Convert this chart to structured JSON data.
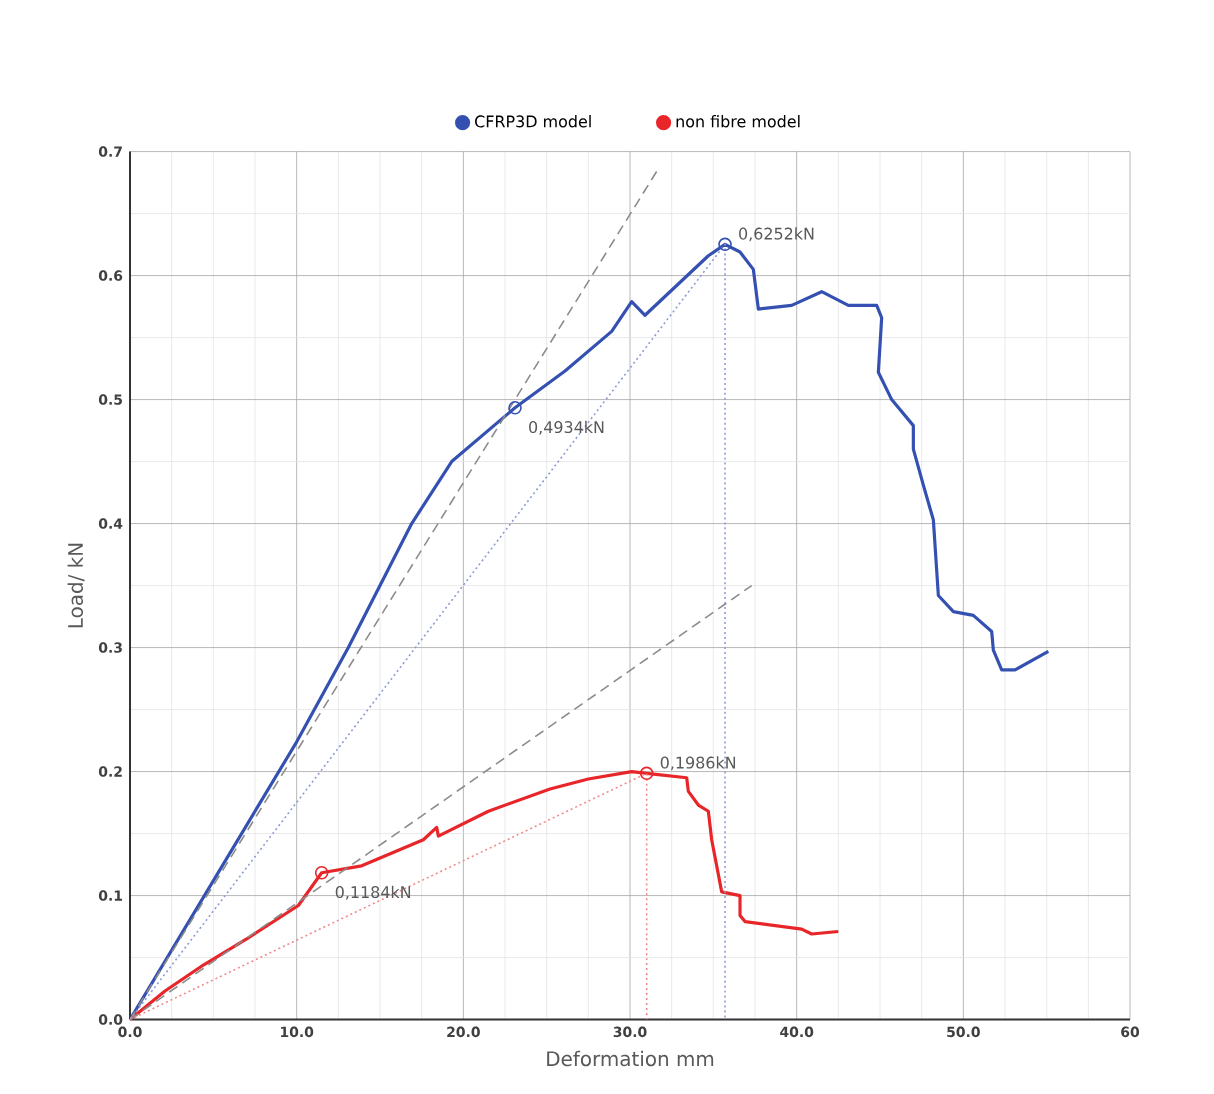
{
  "chart_data": {
    "type": "line",
    "xlabel": "Deformation mm",
    "ylabel": "Load/ kN",
    "xlim": [
      0,
      60
    ],
    "ylim": [
      0,
      0.7
    ],
    "xticks": [
      {
        "value": 0,
        "label": "0.0"
      },
      {
        "value": 10,
        "label": "10.0"
      },
      {
        "value": 20,
        "label": "20.0"
      },
      {
        "value": 30,
        "label": "30.0"
      },
      {
        "value": 40,
        "label": "40.0"
      },
      {
        "value": 50,
        "label": "50.0"
      },
      {
        "value": 60,
        "label": "60"
      }
    ],
    "yticks": [
      {
        "value": 0,
        "label": "0.0"
      },
      0.1,
      0.2,
      0.3,
      0.4,
      0.5,
      0.6,
      0.7
    ],
    "grid": true,
    "legend": "top",
    "series": [
      {
        "name": "CFRP3D model",
        "color": "#3451b2",
        "x": [
          0,
          10.0,
          13.1,
          16.9,
          19.3,
          23.1,
          26.1,
          28.9,
          30.1,
          30.9,
          32.8,
          34.7,
          35.7,
          36.6,
          37.4,
          37.7,
          39.7,
          41.5,
          43.1,
          44.8,
          45.1,
          44.9,
          45.7,
          47.0,
          47.0,
          47.6,
          48.2,
          48.5,
          49.4,
          50.6,
          51.7,
          51.8,
          52.3,
          53.1,
          55.1
        ],
        "values": [
          0,
          0.224,
          0.3,
          0.4,
          0.45,
          0.4934,
          0.523,
          0.555,
          0.579,
          0.568,
          0.592,
          0.616,
          0.6252,
          0.619,
          0.605,
          0.573,
          0.576,
          0.587,
          0.576,
          0.576,
          0.566,
          0.522,
          0.5,
          0.479,
          0.46,
          0.431,
          0.403,
          0.342,
          0.329,
          0.326,
          0.313,
          0.298,
          0.282,
          0.282,
          0.297
        ]
      },
      {
        "name": "non fibre model",
        "color": "#e8262a",
        "x": [
          0,
          2.1,
          4.4,
          7.0,
          10.1,
          11.5,
          13.9,
          17.6,
          18.4,
          18.5,
          21.5,
          25.2,
          27.5,
          30.1,
          31.0,
          33.4,
          33.5,
          34.1,
          34.7,
          34.9,
          35.5,
          36.6,
          36.6,
          36.9,
          40.3,
          40.9,
          42.5
        ],
        "values": [
          0,
          0.023,
          0.044,
          0.065,
          0.092,
          0.1184,
          0.124,
          0.145,
          0.155,
          0.148,
          0.168,
          0.186,
          0.194,
          0.2,
          0.1986,
          0.195,
          0.184,
          0.173,
          0.168,
          0.145,
          0.103,
          0.1,
          0.084,
          0.079,
          0.073,
          0.069,
          0.071
        ]
      },
      {
        "color": "#8c8c8c",
        "line_style": "dashed",
        "x": [
          0,
          31.6
        ],
        "values": [
          0,
          0.684
        ]
      },
      {
        "color": "#8c8c8c",
        "line_style": "dashed",
        "x": [
          0,
          37.3
        ],
        "values": [
          0,
          0.35
        ]
      },
      {
        "color": "#8c9bd4",
        "line_style": "dotted",
        "x": [
          0,
          35.7,
          35.7
        ],
        "values": [
          0,
          0.6252,
          0
        ]
      },
      {
        "color": "#f08a8a",
        "line_style": "dotted",
        "x": [
          0,
          31.0,
          31.0
        ],
        "values": [
          0,
          0.1986,
          0
        ]
      },
      {
        "type": "scatter",
        "marker": "circle",
        "color": "#3451b2",
        "x": [
          23.1,
          35.7
        ],
        "values": [
          0.4934,
          0.6252
        ]
      },
      {
        "type": "scatter",
        "marker": "circle",
        "color": "#e8262a",
        "x": [
          11.5,
          31.0
        ],
        "values": [
          0.1184,
          0.1986
        ]
      }
    ],
    "annotations": [
      {
        "text": "0,4934kN",
        "x": 23.1,
        "y": 0.4934
      },
      {
        "text": "0,6252kN",
        "x": 35.7,
        "y": 0.6252
      },
      {
        "text": "0,1184kN",
        "x": 11.5,
        "y": 0.1184
      },
      {
        "text": "0,1986kN",
        "x": 31.0,
        "y": 0.1986
      }
    ]
  }
}
